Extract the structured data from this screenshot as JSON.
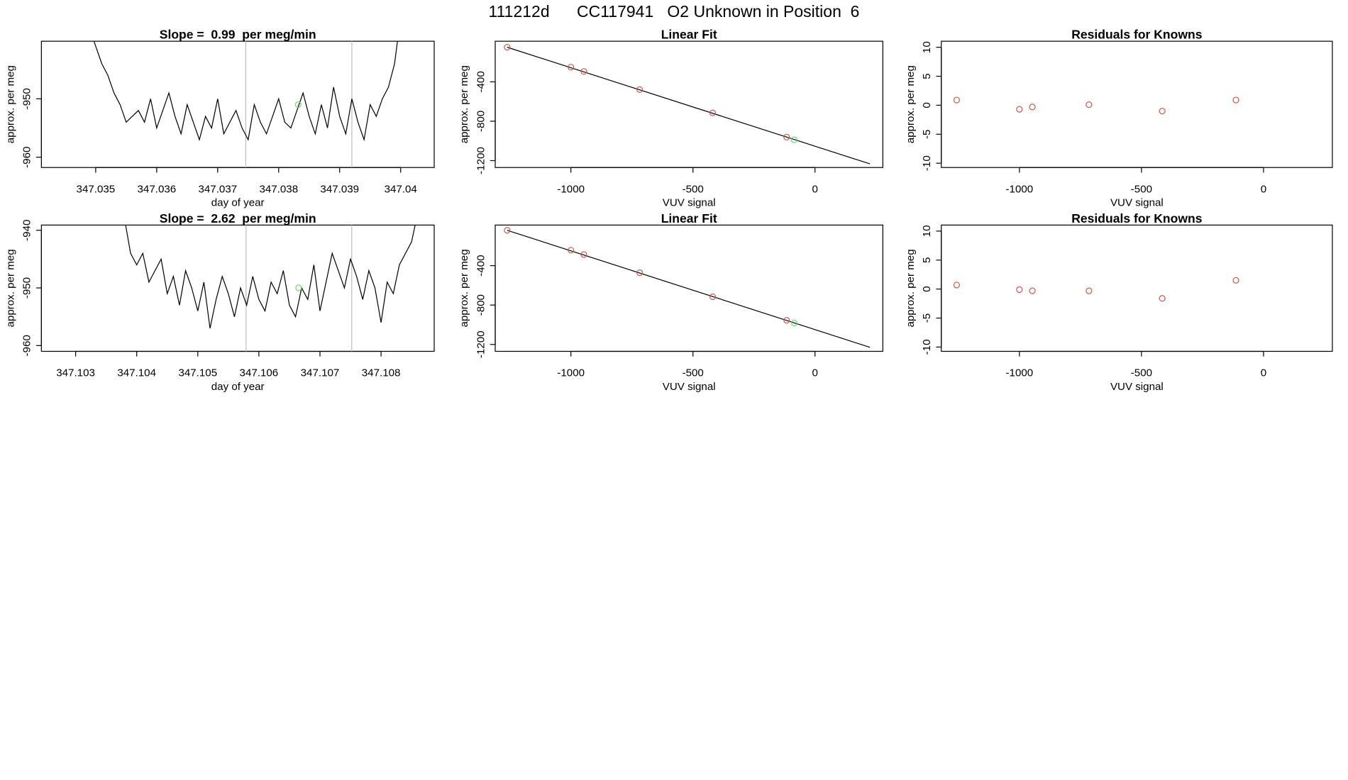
{
  "title": "111212d      CC117941   O2 Unknown in Position  6",
  "chart_data": [
    {
      "type": "line",
      "title": "Slope =  0.99  per meg/min",
      "xlabel": "day of year",
      "ylabel": "approx. per meg",
      "x": [
        347.0349,
        347.035,
        347.0351,
        347.0352,
        347.0353,
        347.0354,
        347.0355,
        347.0356,
        347.0357,
        347.0358,
        347.0359,
        347.036,
        347.0361,
        347.0362,
        347.0363,
        347.0364,
        347.0365,
        347.0366,
        347.0367,
        347.0368,
        347.0369,
        347.037,
        347.0371,
        347.0372,
        347.0373,
        347.0374,
        347.0375,
        347.0376,
        347.0377,
        347.0378,
        347.0379,
        347.038,
        347.0381,
        347.0382,
        347.0383,
        347.0384,
        347.0385,
        347.0386,
        347.0387,
        347.0388,
        347.0389,
        347.039,
        347.0391,
        347.0392,
        347.0393,
        347.0394,
        347.0395,
        347.0396,
        347.0397,
        347.0398,
        347.0399,
        347.04
      ],
      "values": [
        -938,
        -941,
        -944,
        -946,
        -949,
        -951,
        -954,
        -953,
        -952,
        -954,
        -950,
        -955,
        -952,
        -949,
        -953,
        -956,
        -951,
        -954,
        -957,
        -953,
        -955,
        -950,
        -956,
        -954,
        -952,
        -955,
        -957,
        -951,
        -954,
        -956,
        -953,
        -950,
        -954,
        -955,
        -952,
        -949,
        -953,
        -956,
        -951,
        -955,
        -948,
        -953,
        -956,
        -950,
        -954,
        -957,
        -951,
        -953,
        -950,
        -948,
        -944,
        -936
      ],
      "color": "#000000",
      "xlim": [
        347.03411,
        347.04055
      ],
      "ylim": [
        -961.76,
        -940.15
      ],
      "xticks": [
        347.035,
        347.036,
        347.037,
        347.038,
        347.039,
        347.04
      ],
      "yticks": [
        -950,
        -960
      ],
      "vlines": [
        347.03746,
        347.0392
      ],
      "vline_color": "#bebebe",
      "highlight": {
        "x": 347.03832,
        "y": -951,
        "color": "#66dd66"
      }
    },
    {
      "type": "scatter",
      "title": "Linear Fit",
      "xlabel": "VUV signal",
      "ylabel": "approx. per meg",
      "x": [
        -1261,
        -1000,
        -947,
        -718,
        -419,
        -116
      ],
      "values": [
        -49,
        -251,
        -295,
        -479,
        -716,
        -961
      ],
      "color": "#d2584a",
      "xlim": [
        -1310,
        278
      ],
      "ylim": [
        -1270,
        12
      ],
      "xticks": [
        -1000,
        -500,
        0
      ],
      "yticks": [
        -400,
        -800,
        -1200
      ],
      "fit_line": {
        "x": [
          -1261,
          225
        ],
        "y": [
          -49,
          -1233
        ],
        "color": "#000000"
      },
      "highlight": {
        "x": -85,
        "y": -988,
        "color": "#66dd66"
      }
    },
    {
      "type": "scatter",
      "title": "Residuals for Knowns",
      "xlabel": "VUV signal",
      "ylabel": "approx. per meg",
      "x": [
        -1257,
        -1000,
        -947,
        -715,
        -415,
        -113
      ],
      "values": [
        0.9,
        -0.7,
        -0.3,
        0.1,
        -1.0,
        0.9
      ],
      "color": "#d2584a",
      "xlim": [
        -1320,
        282
      ],
      "ylim": [
        -10.74,
        11.04
      ],
      "xticks": [
        -1000,
        -500,
        0
      ],
      "yticks": [
        10,
        5,
        0,
        -5,
        -10
      ]
    },
    {
      "type": "line",
      "title": "Slope =  2.62  per meg/min",
      "xlabel": "day of year",
      "ylabel": "approx. per meg",
      "x": [
        347.1038,
        347.1039,
        347.104,
        347.1041,
        347.1042,
        347.1043,
        347.1044,
        347.1045,
        347.1046,
        347.1047,
        347.1048,
        347.1049,
        347.105,
        347.1051,
        347.1052,
        347.1053,
        347.1054,
        347.1055,
        347.1056,
        347.1057,
        347.1058,
        347.1059,
        347.106,
        347.1061,
        347.1062,
        347.1063,
        347.1064,
        347.1065,
        347.1066,
        347.1067,
        347.1068,
        347.1069,
        347.107,
        347.1071,
        347.1072,
        347.1073,
        347.1074,
        347.1075,
        347.1076,
        347.1077,
        347.1078,
        347.1079,
        347.108,
        347.1081,
        347.1082,
        347.1083,
        347.1084,
        347.1085,
        347.1086
      ],
      "values": [
        -938,
        -944,
        -946,
        -944,
        -949,
        -947,
        -945,
        -951,
        -948,
        -953,
        -947,
        -950,
        -954,
        -949,
        -957,
        -952,
        -948,
        -951,
        -955,
        -950,
        -953,
        -948,
        -952,
        -954,
        -949,
        -951,
        -947,
        -953,
        -955,
        -950,
        -952,
        -946,
        -954,
        -949,
        -944,
        -947,
        -950,
        -945,
        -948,
        -952,
        -947,
        -950,
        -956,
        -949,
        -951,
        -946,
        -944,
        -942,
        -937
      ],
      "color": "#000000",
      "xlim": [
        347.10244,
        347.10887
      ],
      "ylim": [
        -961.0,
        -939.1
      ],
      "xticks": [
        347.103,
        347.104,
        347.105,
        347.106,
        347.107,
        347.108
      ],
      "yticks": [
        -940,
        -950,
        -960
      ],
      "vlines": [
        347.10579,
        347.10752
      ],
      "vline_color": "#bebebe",
      "highlight": {
        "x": 347.10665,
        "y": -950,
        "color": "#66dd66"
      }
    },
    {
      "type": "scatter",
      "title": "Linear Fit",
      "xlabel": "VUV signal",
      "ylabel": "approx. per meg",
      "x": [
        -1261,
        -1000,
        -947,
        -718,
        -419,
        -116
      ],
      "values": [
        -41,
        -243,
        -287,
        -472,
        -716,
        -955
      ],
      "color": "#d2584a",
      "xlim": [
        -1310,
        278
      ],
      "ylim": [
        -1270,
        12
      ],
      "xticks": [
        -1000,
        -500,
        0
      ],
      "yticks": [
        -400,
        -800,
        -1200
      ],
      "fit_line": {
        "x": [
          -1261,
          225
        ],
        "y": [
          -41,
          -1229
        ],
        "color": "#000000"
      },
      "highlight": {
        "x": -85,
        "y": -982,
        "color": "#66dd66"
      }
    },
    {
      "type": "scatter",
      "title": "Residuals for Knowns",
      "xlabel": "VUV signal",
      "ylabel": "approx. per meg",
      "x": [
        -1257,
        -1000,
        -947,
        -715,
        -415,
        -113
      ],
      "values": [
        0.7,
        -0.1,
        -0.3,
        -0.3,
        -1.6,
        1.5
      ],
      "color": "#d2584a",
      "xlim": [
        -1320,
        282
      ],
      "ylim": [
        -10.74,
        11.04
      ],
      "xticks": [
        -1000,
        -500,
        0
      ],
      "yticks": [
        10,
        5,
        0,
        -5,
        -10
      ]
    }
  ]
}
